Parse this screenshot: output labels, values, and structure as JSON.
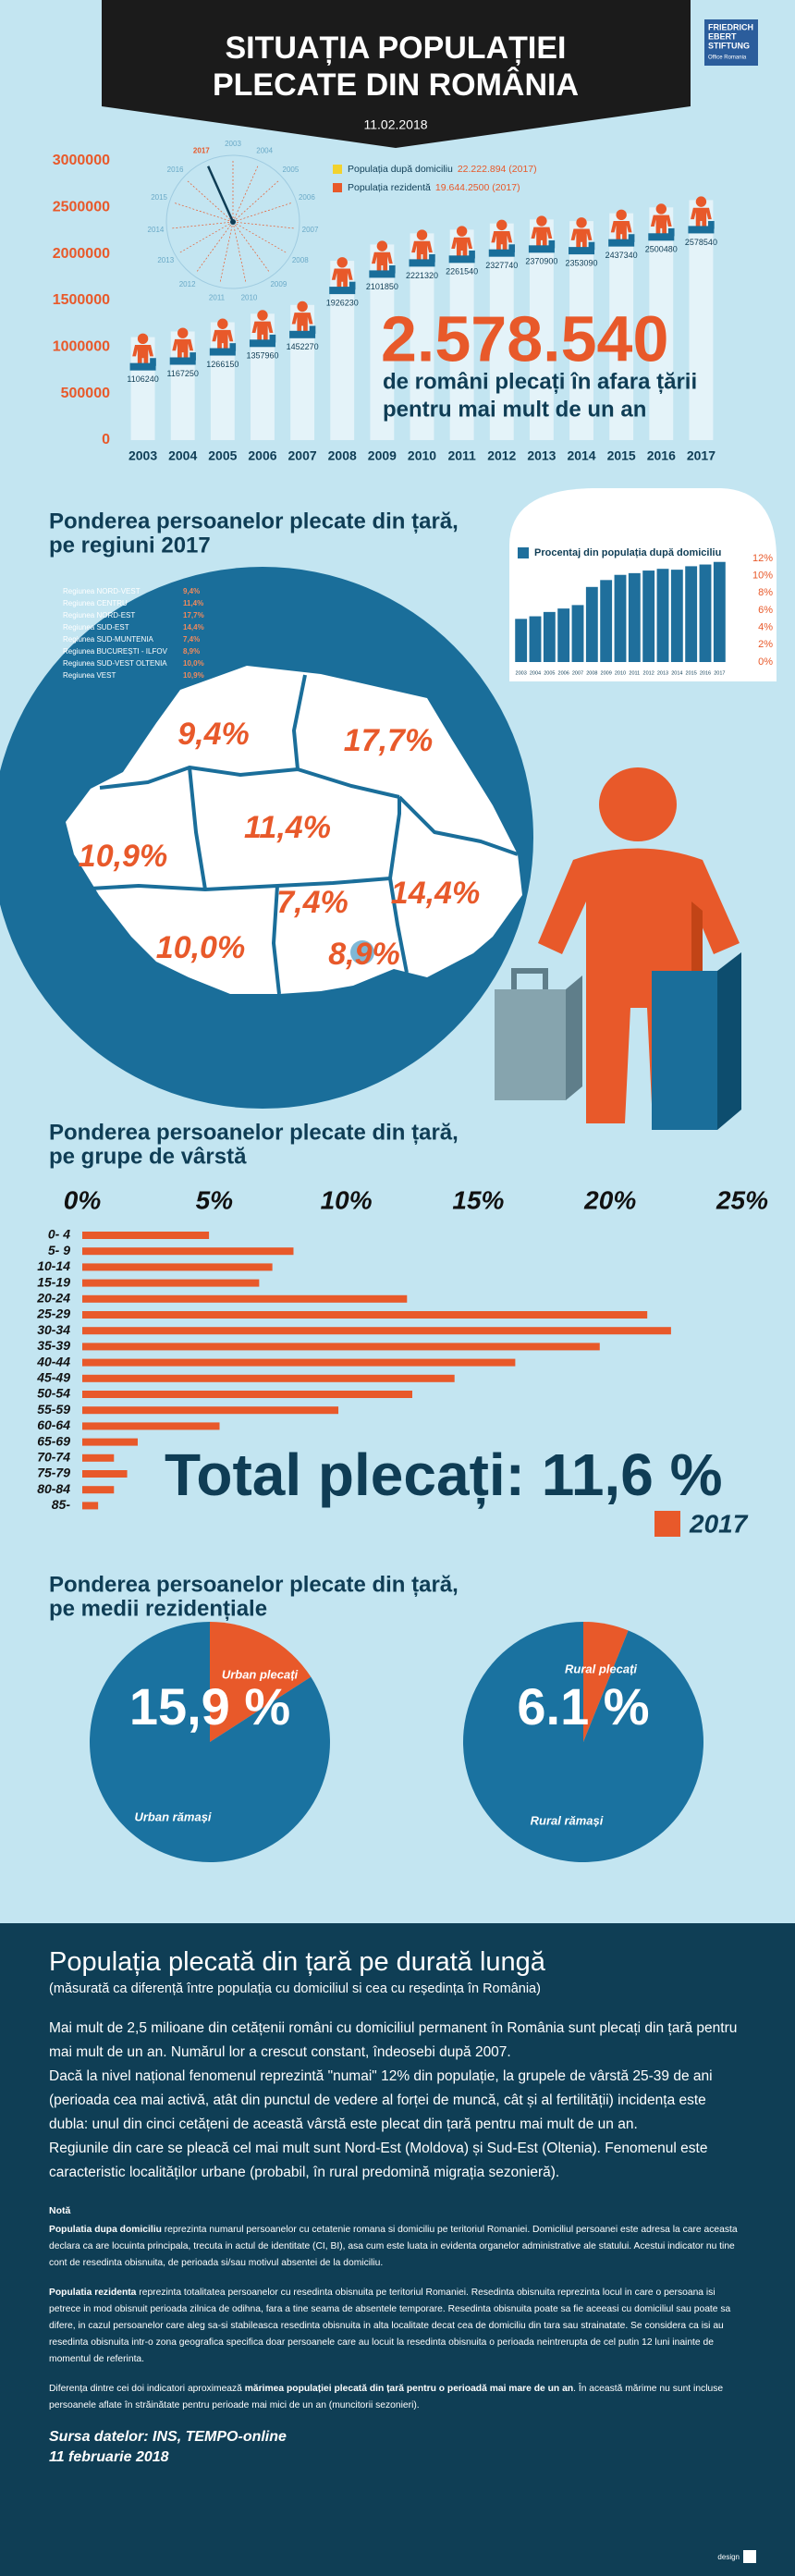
{
  "header": {
    "title": [
      "SITUAȚIA POPULAȚIEI",
      "PLECATE DIN ROMÂNIA"
    ],
    "date": "11.02.2018",
    "logo": [
      "FRIEDRICH",
      "EBERT",
      "STIFTUNG",
      "Office Romania"
    ]
  },
  "chart_data": [
    {
      "type": "bar",
      "categories": [
        "2003",
        "2004",
        "2005",
        "2006",
        "2007",
        "2008",
        "2009",
        "2010",
        "2011",
        "2012",
        "2013",
        "2014",
        "2015",
        "2016",
        "2017"
      ],
      "values": [
        1106240,
        1167250,
        1266150,
        1357960,
        1452270,
        1926230,
        2101850,
        2221320,
        2261540,
        2327740,
        2370900,
        2353090,
        2437340,
        2500480,
        2578540
      ],
      "color": "#e8592a",
      "ylim": [
        0,
        3000000
      ],
      "yticks": [
        0,
        500000,
        1000000,
        1500000,
        2000000,
        2500000,
        3000000
      ],
      "legend": [
        {
          "label": "Populația după domiciliu",
          "value": "22.222.894 (2017)",
          "color": "#f2d22e"
        },
        {
          "label": "Populația rezidentă",
          "value": "19.644.2500 (2017)",
          "color": "#e8592a"
        }
      ],
      "annotation": "2.578.540",
      "annotation_text": [
        "de români plecați în afara țării",
        "pentru mai mult de un an"
      ]
    },
    {
      "type": "bar",
      "categories": [
        "2003",
        "2004",
        "2005",
        "2006",
        "2007",
        "2008",
        "2009",
        "2010",
        "2011",
        "2012",
        "2013",
        "2014",
        "2015",
        "2016",
        "2017"
      ],
      "series": [
        {
          "name": "Procentaj din populația după domiciliu",
          "color": "#1f6f9c",
          "values": [
            5.0,
            5.3,
            5.8,
            6.2,
            6.6,
            8.7,
            9.5,
            10.1,
            10.3,
            10.6,
            10.8,
            10.7,
            11.1,
            11.3,
            11.6
          ]
        }
      ],
      "ylim": [
        0,
        12
      ],
      "yticks": [
        {
          "value": 12,
          "label": "12%"
        },
        {
          "value": 10,
          "label": "10%"
        },
        {
          "value": 8,
          "label": "8%"
        },
        {
          "value": 6,
          "label": "6%"
        },
        {
          "value": 4,
          "label": "4%"
        },
        {
          "value": 2,
          "label": "2%"
        },
        {
          "value": 0,
          "label": "0%"
        }
      ]
    },
    {
      "type": "map",
      "title": [
        "Ponderea persoanelor plecate din țară,",
        "pe regiuni 2017"
      ],
      "categories": [
        "Regiunea NORD-VEST",
        "Regiunea CENTRU",
        "Regiunea NORD-EST",
        "Regiunea SUD-EST",
        "Regiunea SUD-MUNTENIA",
        "Regiunea BUCUREȘTI - ILFOV",
        "Regiunea SUD-VEST OLTENIA",
        "Regiunea VEST"
      ],
      "values": [
        9.4,
        11.4,
        17.7,
        14.4,
        7.4,
        8.9,
        10.0,
        10.9
      ],
      "value_labels": [
        "9,4%",
        "11,4%",
        "17,7%",
        "14,4%",
        "7,4%",
        "8,9%",
        "10,0%",
        "10,9%"
      ],
      "color": "#e8592a"
    },
    {
      "type": "barh",
      "title": [
        "Ponderea persoanelor plecate din țară,",
        "pe grupe de vârstă"
      ],
      "categories": [
        "0- 4",
        "5- 9",
        "10-14",
        "15-19",
        "20-24",
        "25-29",
        "30-34",
        "35-39",
        "40-44",
        "45-49",
        "50-54",
        "55-59",
        "60-64",
        "65-69",
        "70-74",
        "75-79",
        "80-84",
        "85-"
      ],
      "series": [
        {
          "name": "2017",
          "color": "#e8592a",
          "values": [
            4.8,
            8.0,
            7.2,
            6.7,
            12.3,
            21.4,
            22.3,
            19.6,
            16.4,
            14.1,
            12.5,
            9.7,
            5.2,
            2.1,
            1.2,
            1.7,
            1.2,
            0.6
          ]
        }
      ],
      "xlim": [
        0,
        25
      ],
      "xticks": [
        {
          "value": 0,
          "label": "0%"
        },
        {
          "value": 5,
          "label": "5%"
        },
        {
          "value": 10,
          "label": "10%"
        },
        {
          "value": 15,
          "label": "15%"
        },
        {
          "value": 20,
          "label": "20%"
        },
        {
          "value": 25,
          "label": "25%"
        }
      ],
      "annotation": "Total plecați: 11,6 %"
    },
    {
      "type": "pie",
      "title": [
        "Ponderea persoanelor plecate din țară,",
        "pe medii rezidențiale"
      ],
      "categories": [
        "Urban plecați",
        "Urban rămași"
      ],
      "values": [
        15.9,
        84.1
      ],
      "value_labels": [
        "15,9 %",
        null
      ],
      "colors": [
        "#e8592a",
        "#1a72a0"
      ]
    },
    {
      "type": "pie",
      "categories": [
        "Rural plecați",
        "Rural rămași"
      ],
      "values": [
        6.1,
        93.9
      ],
      "value_labels": [
        "6.1 %",
        null
      ],
      "colors": [
        "#e8592a",
        "#1a72a0"
      ]
    }
  ],
  "text_section": {
    "title": "Populația plecată din țară pe durată lungă",
    "subtitle": "(măsurată ca diferență între populația cu domiciliul si cea cu reședința în România)",
    "paragraphs": [
      "Mai mult de 2,5 milioane din cetățenii români cu domiciliul permanent  în România sunt plecați din țară pentru mai mult de un an. Numărul lor a crescut constant, îndeosebi după 2007.",
      "Dacă la nivel național fenomenul reprezintă \"numai\" 12% din populație, la grupele de vârstă 25-39 de ani (perioada cea mai activă, atât din punctul de vedere al forței de muncă, cât și al fertilității) incidența este dubla: unul din cinci cetățeni de această vârstă este plecat din țară pentru mai mult de un an.",
      "Regiunile din care se pleacă cel mai mult sunt Nord-Est  (Moldova) și Sud-Est (Oltenia). Fenomenul este caracteristic localităților urbane (probabil, în rural predomină migrația sezonieră)."
    ],
    "note_title": "Notă",
    "notes": [
      [
        {
          "text": "Populatia dupa domiciliu",
          "bold": true
        },
        {
          "text": " reprezinta numarul persoanelor cu cetatenie romana si domiciliu pe teritoriul Romaniei.  Domiciliul persoanei este adresa la care aceasta declara ca are locuinta principala, trecuta in actul de identitate (CI, BI), asa cum este luata in evidenta organelor administrative ale statului. Acestui indicator nu tine cont de resedinta obisnuita, de perioada si/sau motivul absentei de la domiciliu.",
          "bold": false
        }
      ],
      [
        {
          "text": "Populatia rezidenta",
          "bold": true
        },
        {
          "text": " reprezinta totalitatea persoanelor cu resedinta obisnuita pe teritoriul Romaniei.  Resedinta obisnuita reprezinta locul in care o persoana isi petrece in mod obisnuit perioada zilnica de odihna, fara a tine seama de absentele temporare. Resedinta obisnuita poate sa fie aceeasi cu domiciliul sau poate sa difere, in cazul persoanelor care aleg sa-si stabileasca resedinta obisnuita in alta localitate decat cea de domiciliu din tara sau strainatate.  Se considera ca isi au resedinta obisnuita intr-o zona geografica specifica doar persoanele care au locuit la resedinta obisnuita o perioada neintrerupta de cel putin 12 luni inainte de momentul de referinta.",
          "bold": false
        }
      ],
      [
        {
          "text": "Diferența dintre cei doi indicatori aproximează ",
          "bold": false
        },
        {
          "text": "mărimea populației plecată din țară pentru o perioadă mai mare de un an",
          "bold": true
        },
        {
          "text": ". În această mărime nu sunt incluse persoanele aflate în străinătate pentru perioade mai mici de un an (muncitorii sezonieri).",
          "bold": false
        }
      ]
    ],
    "source": [
      "Sursa datelor: INS, TEMPO-online",
      "11 februarie 2018"
    ],
    "footer": "design"
  }
}
